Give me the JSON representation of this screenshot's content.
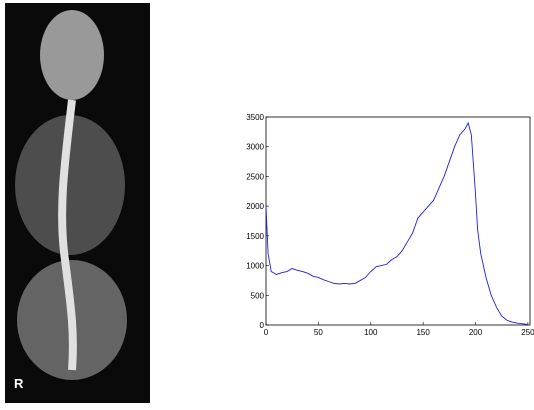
{
  "image": {
    "marker": "R"
  },
  "chart_data": {
    "type": "line",
    "x": [
      0,
      2,
      5,
      10,
      15,
      20,
      25,
      30,
      35,
      40,
      45,
      50,
      55,
      60,
      65,
      70,
      75,
      80,
      85,
      90,
      95,
      100,
      105,
      110,
      115,
      120,
      125,
      130,
      135,
      140,
      145,
      150,
      155,
      160,
      165,
      170,
      175,
      180,
      185,
      190,
      193,
      196,
      200,
      202,
      205,
      210,
      215,
      220,
      225,
      230,
      235,
      240,
      245,
      250
    ],
    "series": [
      {
        "color": "#1f1fe0",
        "values": [
          2000,
          1200,
          900,
          850,
          880,
          900,
          950,
          920,
          900,
          870,
          820,
          800,
          760,
          730,
          700,
          690,
          700,
          690,
          700,
          750,
          800,
          900,
          980,
          1000,
          1020,
          1100,
          1150,
          1250,
          1400,
          1550,
          1800,
          1900,
          2000,
          2100,
          2300,
          2500,
          2750,
          3000,
          3200,
          3300,
          3400,
          3200,
          2200,
          1600,
          1200,
          800,
          500,
          300,
          150,
          80,
          50,
          30,
          20,
          10
        ]
      }
    ],
    "xlim": [
      0,
      252
    ],
    "ylim": [
      0,
      3500
    ],
    "xticks": [
      0,
      50,
      100,
      150,
      200,
      250
    ],
    "yticks": [
      0,
      500,
      1000,
      1500,
      2000,
      2500,
      3000,
      3500
    ]
  }
}
